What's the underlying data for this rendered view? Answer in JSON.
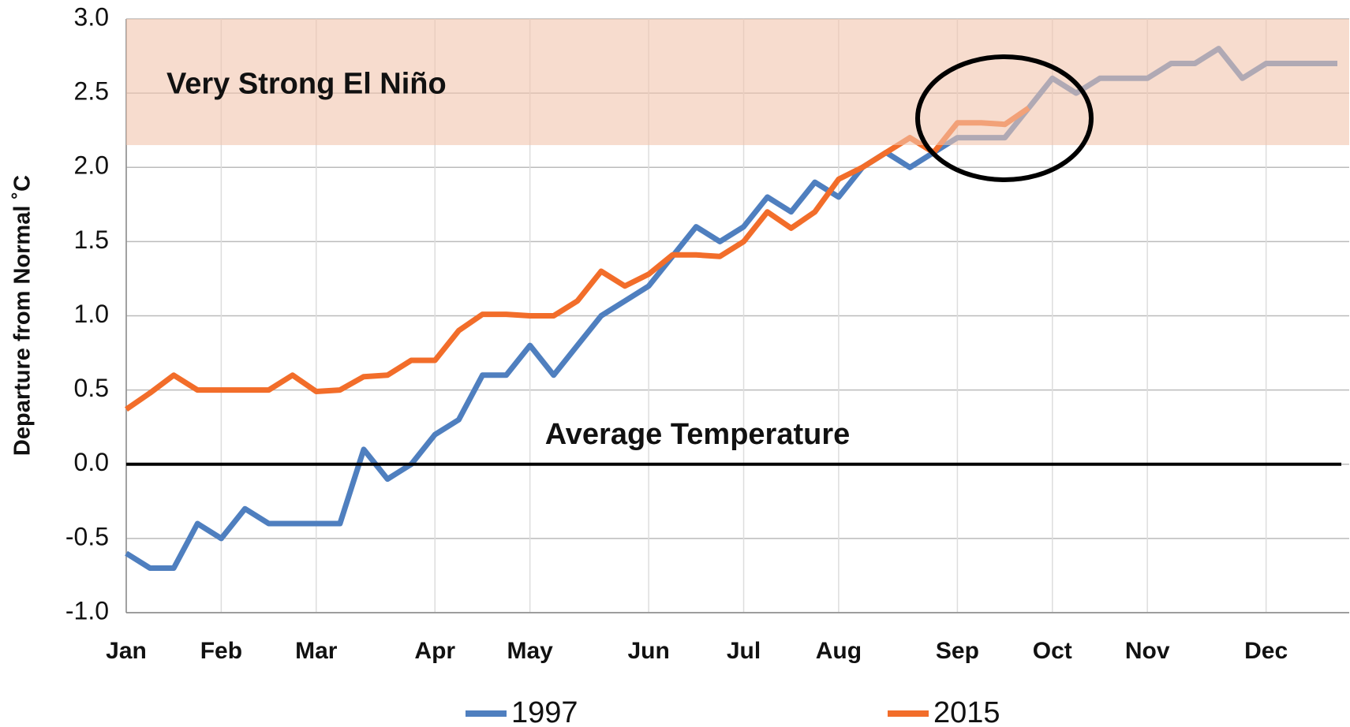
{
  "chart_data": {
    "type": "line",
    "y_label": "Departure from Normal ˚C",
    "categories": [
      "Jan",
      null,
      null,
      null,
      "Feb",
      null,
      null,
      null,
      "Mar",
      null,
      null,
      null,
      null,
      "Apr",
      null,
      null,
      null,
      "May",
      null,
      null,
      null,
      null,
      "Jun",
      null,
      null,
      null,
      "Jul",
      null,
      null,
      null,
      "Aug",
      null,
      null,
      null,
      null,
      "Sep",
      null,
      null,
      null,
      "Oct",
      null,
      null,
      null,
      "Nov",
      null,
      null,
      null,
      null,
      "Dec",
      null,
      null,
      null
    ],
    "series": [
      {
        "name": "1997",
        "color": "#4f7fbf",
        "values": [
          -0.6,
          -0.7,
          -0.7,
          -0.4,
          -0.5,
          -0.3,
          -0.4,
          -0.4,
          -0.4,
          -0.4,
          0.1,
          -0.1,
          0.0,
          0.2,
          0.3,
          0.6,
          0.6,
          0.8,
          0.6,
          0.8,
          1.0,
          1.1,
          1.2,
          1.4,
          1.6,
          1.5,
          1.6,
          1.8,
          1.7,
          1.9,
          1.8,
          2.0,
          2.1,
          2.0,
          2.1,
          2.2,
          2.2,
          2.2,
          2.4,
          2.6,
          2.5,
          2.6,
          2.6,
          2.6,
          2.7,
          2.7,
          2.8,
          2.6,
          2.7,
          2.7,
          2.7,
          2.7
        ]
      },
      {
        "name": "2015",
        "color": "#f26d2a",
        "values": [
          0.37,
          0.48,
          0.6,
          0.5,
          0.5,
          0.5,
          0.5,
          0.6,
          0.49,
          0.5,
          0.59,
          0.6,
          0.7,
          0.7,
          0.9,
          1.01,
          1.01,
          1.0,
          1.0,
          1.1,
          1.3,
          1.2,
          1.28,
          1.41,
          1.41,
          1.4,
          1.5,
          1.7,
          1.59,
          1.7,
          1.92,
          2.0,
          2.1,
          2.2,
          2.1,
          2.3,
          2.3,
          2.29,
          2.4,
          null,
          null,
          null,
          null,
          null,
          null,
          null,
          null,
          null,
          null,
          null,
          null,
          null
        ]
      }
    ],
    "ylim": [
      -1,
      3
    ],
    "yticks": [
      {
        "value": -1,
        "label": "-1.0"
      },
      -0.5,
      {
        "value": 0,
        "label": "0.0"
      },
      0.5,
      {
        "value": 1,
        "label": "1.0"
      },
      1.5,
      {
        "value": 2,
        "label": "2.0"
      },
      2.5,
      {
        "value": 3,
        "label": "3.0"
      }
    ],
    "grid": true,
    "annotations": [
      {
        "text": "Very Strong El Niño",
        "band": [
          2.15,
          3.0
        ],
        "color": "#f2c4ae"
      },
      {
        "text": "Average Temperature",
        "line": 0,
        "color": "#000000"
      }
    ],
    "legend": "bottom"
  }
}
